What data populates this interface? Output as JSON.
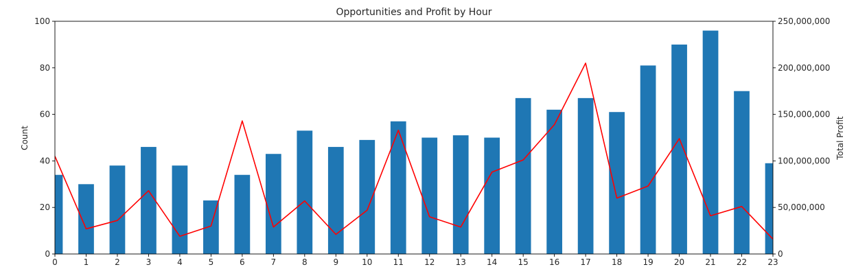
{
  "chart_data": {
    "type": "bar",
    "title": "Opportunities and Profit by Hour",
    "xlabel": "",
    "ylabel": "Count",
    "y2label": "Total Profit",
    "categories": [
      "0",
      "1",
      "2",
      "3",
      "4",
      "5",
      "6",
      "7",
      "8",
      "9",
      "10",
      "11",
      "12",
      "13",
      "14",
      "15",
      "16",
      "17",
      "18",
      "19",
      "20",
      "21",
      "22",
      "23"
    ],
    "ylim": [
      0,
      100
    ],
    "y_ticks": [
      "0",
      "20",
      "40",
      "60",
      "80",
      "100"
    ],
    "y2lim": [
      0,
      250000000
    ],
    "y2_ticks": [
      "0",
      "50,000,000",
      "100,000,000",
      "150,000,000",
      "200,000,000",
      "250,000,000"
    ],
    "series": [
      {
        "type": "bar",
        "axis": "left",
        "color": "#1f77b4",
        "values": [
          34,
          30,
          38,
          46,
          38,
          23,
          34,
          43,
          53,
          46,
          49,
          57,
          50,
          51,
          50,
          67,
          62,
          67,
          61,
          81,
          90,
          96,
          70,
          39
        ]
      },
      {
        "type": "line",
        "axis": "right",
        "color": "#ff0000",
        "values": [
          105000000,
          27000000,
          36000000,
          68000000,
          19000000,
          30000000,
          143000000,
          29000000,
          57000000,
          21000000,
          47000000,
          133000000,
          40000000,
          29000000,
          88000000,
          101000000,
          139000000,
          205000000,
          60000000,
          73000000,
          124000000,
          41000000,
          51000000,
          16000000
        ]
      }
    ],
    "grid": false
  }
}
